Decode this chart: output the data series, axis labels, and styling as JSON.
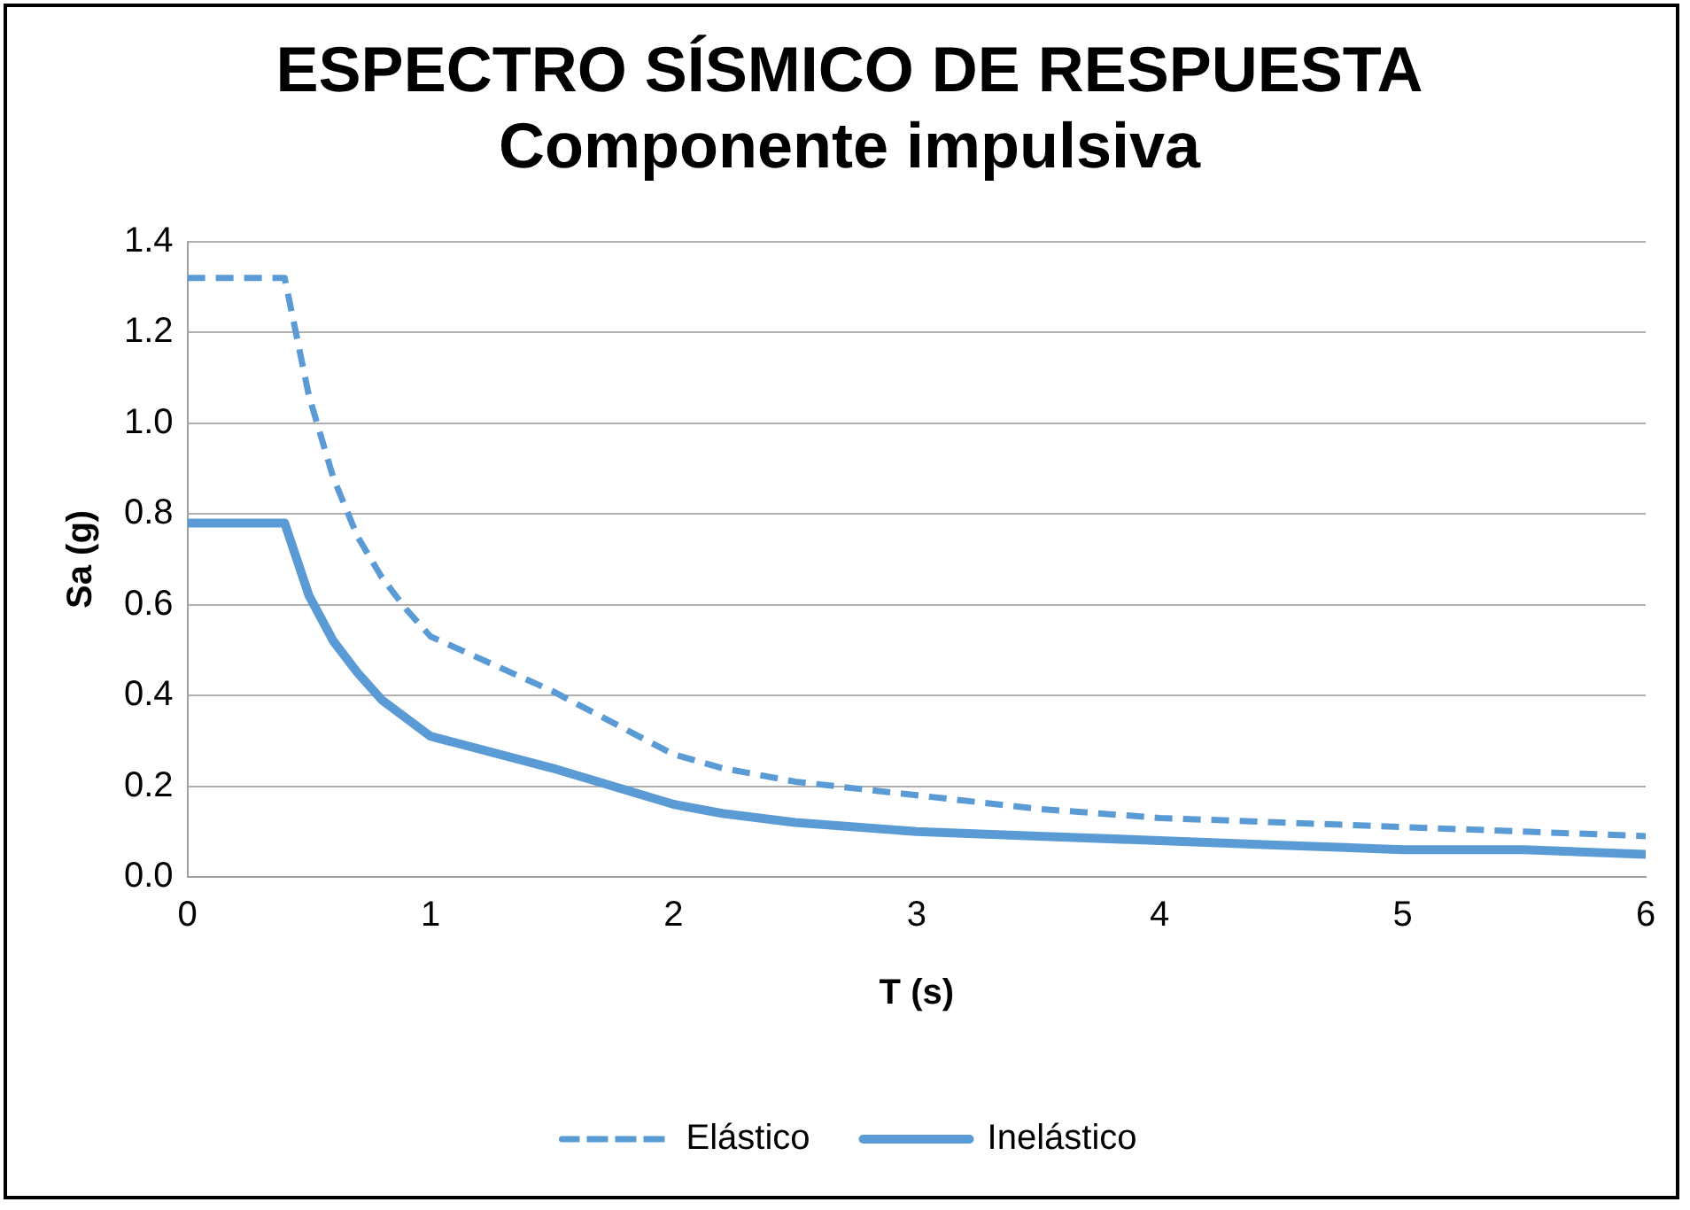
{
  "chart_data": {
    "type": "line",
    "title": [
      "ESPECTRO SÍSMICO DE RESPUESTA",
      "Componente impulsiva"
    ],
    "xlabel": "T (s)",
    "ylabel": "Sa (g)",
    "xlim": [
      0,
      6
    ],
    "xticks": [
      0,
      1,
      2,
      3,
      4,
      5,
      6
    ],
    "ylim": [
      0,
      1.4
    ],
    "yticks": [
      {
        "value": 0,
        "label": "0.0"
      },
      0.2,
      0.4,
      0.6,
      0.8,
      {
        "value": 1,
        "label": "1.0"
      },
      1.2,
      1.4
    ],
    "grid": "y",
    "legend": "bottom",
    "marker": "none",
    "series": [
      {
        "name": "Elástico",
        "color": "#5b9bd5",
        "line_style": "dashed",
        "x": [
          0,
          0.4,
          0.5,
          0.6,
          0.7,
          0.8,
          0.9,
          1,
          1.5,
          2,
          2.2,
          2.5,
          3,
          3.5,
          4,
          4.5,
          5,
          5.5,
          6
        ],
        "values": [
          1.32,
          1.32,
          1.06,
          0.88,
          0.75,
          0.66,
          0.59,
          0.53,
          0.41,
          0.27,
          0.24,
          0.21,
          0.18,
          0.15,
          0.13,
          0.12,
          0.11,
          0.1,
          0.09
        ]
      },
      {
        "name": "Inelástico",
        "color": "#5b9bd5",
        "line_style": "solid",
        "x": [
          0,
          0.4,
          0.5,
          0.6,
          0.7,
          0.8,
          0.9,
          1,
          1.5,
          2,
          2.2,
          2.5,
          3,
          3.5,
          4,
          4.5,
          5,
          5.5,
          6
        ],
        "values": [
          0.78,
          0.78,
          0.62,
          0.52,
          0.45,
          0.39,
          0.35,
          0.31,
          0.24,
          0.16,
          0.14,
          0.12,
          0.1,
          0.09,
          0.08,
          0.07,
          0.06,
          0.06,
          0.05
        ]
      }
    ]
  }
}
